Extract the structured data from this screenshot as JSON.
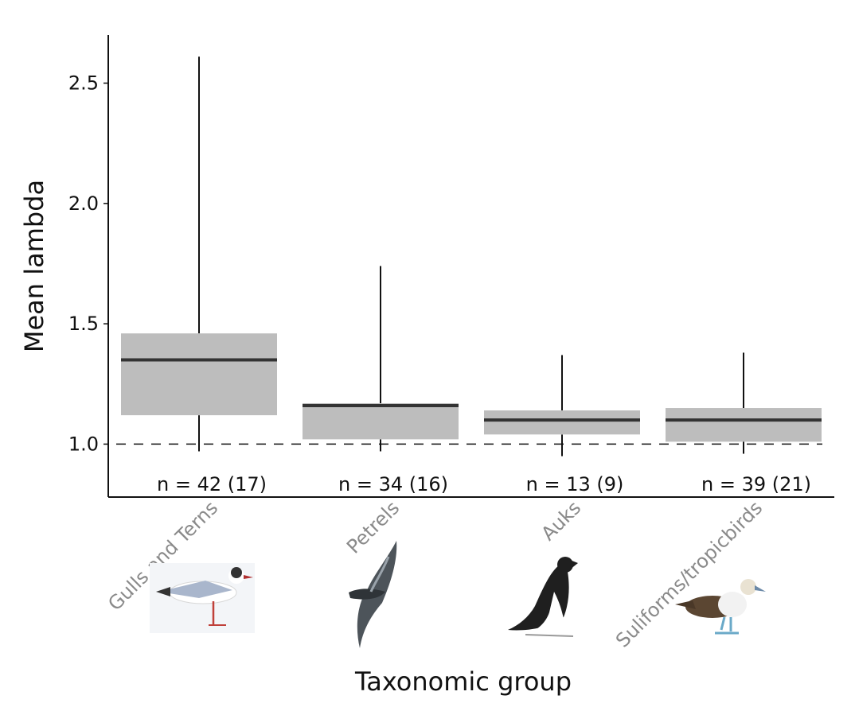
{
  "chart_data": {
    "type": "box",
    "xlabel": "Taxonomic group",
    "ylabel": "Mean lambda",
    "ylim": [
      0.78,
      2.7
    ],
    "yticks": [
      1.0,
      1.5,
      2.0,
      2.5
    ],
    "ytick_labels": [
      "1.0",
      "1.5",
      "2.0",
      "2.5"
    ],
    "reference_line": {
      "y": 1.0,
      "style": "dashed"
    },
    "grid": false,
    "box_color": "#bdbdbd",
    "median_color": "#333333",
    "categories": [
      "Gulls and Terns",
      "Petrels",
      "Auks",
      "Suliforms/tropicbirds"
    ],
    "sample_labels": [
      "n = 42 (17)",
      "n = 34 (16)",
      "n = 13 (9)",
      "n = 39 (21)"
    ],
    "boxes": [
      {
        "category": "Gulls and Terns",
        "whisker_low": 0.97,
        "q1": 1.12,
        "median": 1.35,
        "q3": 1.46,
        "whisker_high": 2.61
      },
      {
        "category": "Petrels",
        "whisker_low": 0.97,
        "q1": 1.02,
        "median": 1.16,
        "q3": 1.17,
        "whisker_high": 1.74
      },
      {
        "category": "Auks",
        "whisker_low": 0.95,
        "q1": 1.04,
        "median": 1.1,
        "q3": 1.14,
        "whisker_high": 1.37
      },
      {
        "category": "Suliforms/tropicbirds",
        "whisker_low": 0.96,
        "q1": 1.01,
        "median": 1.1,
        "q3": 1.15,
        "whisker_high": 1.38
      }
    ],
    "illustrations": [
      "gull-icon",
      "petrel-icon",
      "auk-icon",
      "booby-icon"
    ]
  }
}
